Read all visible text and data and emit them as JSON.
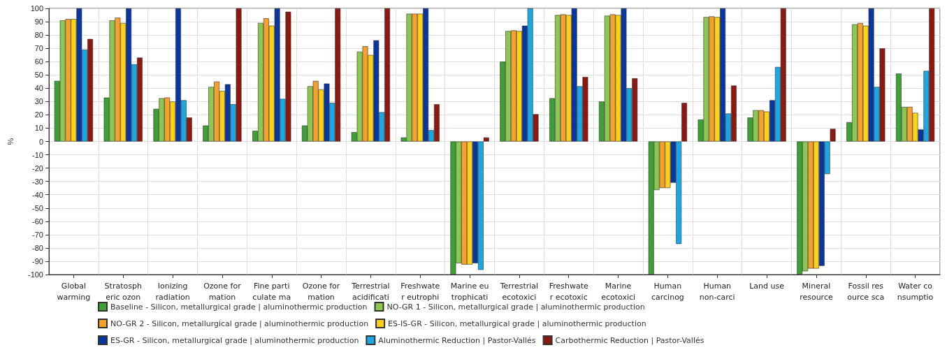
{
  "chart_data": {
    "type": "bar",
    "ylabel": "%",
    "categories": [
      "Global\nwarming",
      "Stratosph\neric ozon",
      "Ionizing\nradiation",
      "Ozone for\nmation",
      "Fine parti\nculate ma",
      "Ozone for\nmation",
      "Terrestrial\nacidificati",
      "Freshwate\nr eutrophi",
      "Marine eu\ntrophicati",
      "Terrestrial\necotoxici",
      "Freshwate\nr ecotoxic",
      "Marine\necotoxici",
      "Human\ncarcinog",
      "Human\nnon-carci",
      "Land use",
      "Mineral\nresource",
      "Fossil res\nource sca",
      "Water co\nnsumptio"
    ],
    "series": [
      {
        "name": "Baseline - Silicon, metallurgical grade | aluminothermic production",
        "color": "#3da035",
        "values": [
          45.5,
          33,
          24.5,
          12,
          8,
          12,
          7,
          3,
          -100,
          60,
          32.5,
          30,
          -100,
          16.5,
          18,
          -100,
          14.5,
          51
        ]
      },
      {
        "name": "NO-GR 1 - Silicon, metallurgical grade | aluminothermic production",
        "color": "#8cc850",
        "values": [
          91,
          91,
          32.5,
          41,
          89,
          41.5,
          67.5,
          96,
          -91.5,
          83,
          95,
          94.5,
          -36.5,
          93.5,
          23.5,
          -97.5,
          88,
          26
        ]
      },
      {
        "name": "NO-GR 2 - Silicon, metallurgical grade | aluminothermic production",
        "color": "#f7a02c",
        "values": [
          92,
          93,
          33,
          45,
          92.5,
          45.5,
          71.5,
          96,
          -92.5,
          83.5,
          95.5,
          95.5,
          -35,
          94,
          23.5,
          -95.5,
          89,
          26
        ]
      },
      {
        "name": "ES-IS-GR - Silicon, metallurgical grade | aluminothermic production",
        "color": "#fcd116",
        "values": [
          92,
          89,
          30,
          38,
          87,
          39,
          65,
          96,
          -92.5,
          83,
          95,
          95,
          -35,
          93.5,
          22.5,
          -95.5,
          87,
          21.5
        ]
      },
      {
        "name": "ES-GR - Silicon, metallurgical grade | aluminothermic production",
        "color": "#0a36a0",
        "values": [
          100,
          100,
          100,
          43,
          100,
          43.5,
          76,
          100,
          -91.5,
          87,
          100,
          100,
          -31,
          100,
          31,
          -93.5,
          100,
          9
        ]
      },
      {
        "name": "Aluminothermic Reduction | Pastor-Vallés",
        "color": "#19a8e4",
        "values": [
          69,
          58,
          31,
          28,
          32,
          29,
          22,
          8.5,
          -96.5,
          100,
          41.5,
          40,
          -77,
          21,
          56,
          -24.5,
          41,
          53
        ]
      },
      {
        "name": "Carbothermic Reduction | Pastor-Vallés",
        "color": "#8c1810",
        "values": [
          77,
          63,
          18,
          100,
          97.5,
          100,
          100,
          28,
          3,
          20.5,
          48.5,
          47.5,
          29,
          42,
          100,
          9.5,
          70,
          100
        ]
      }
    ],
    "ylim": [
      -100,
      100
    ],
    "yticks": [
      -100,
      -90,
      -80,
      -70,
      -60,
      -50,
      -40,
      -30,
      -20,
      -10,
      0,
      10,
      20,
      30,
      40,
      50,
      60,
      70,
      80,
      90,
      100
    ],
    "grid": true,
    "legend": "bottom"
  }
}
